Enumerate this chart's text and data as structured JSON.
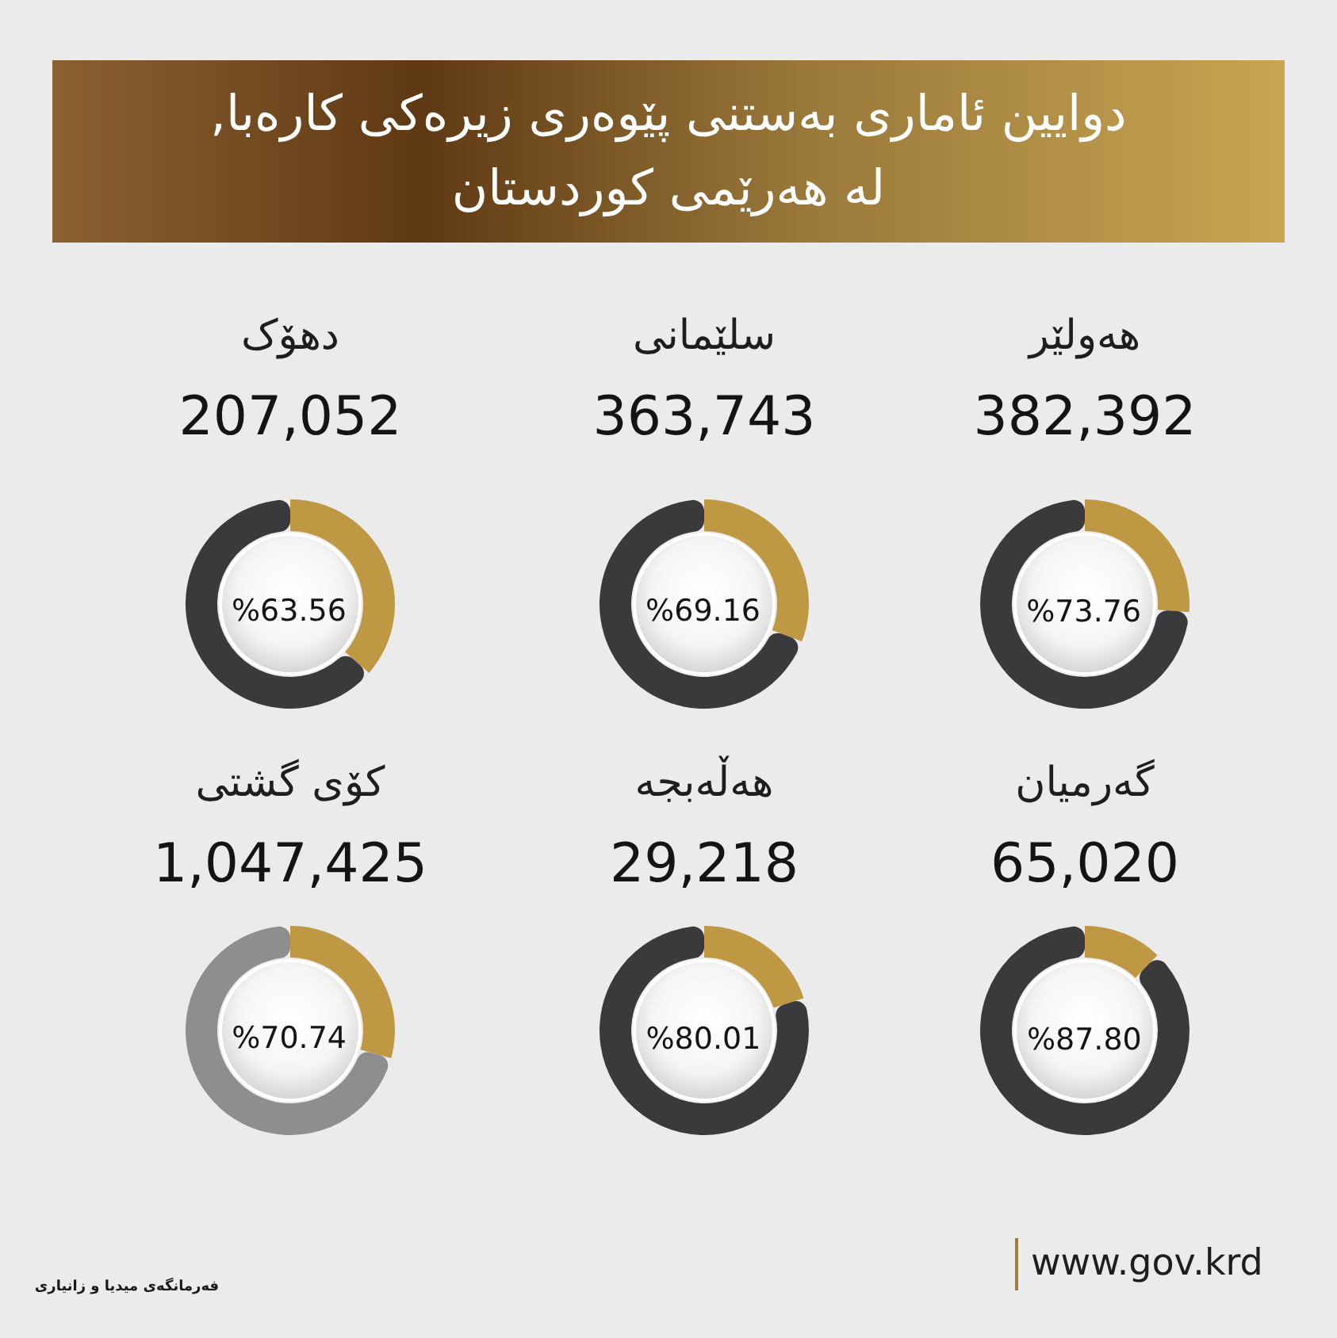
{
  "chart_data": [
    {
      "type": "other",
      "title": "دوایین ئاماری بەستنی پێوەری زیرەکی کارەبا, لە هەرێمی کوردستان"
    },
    {
      "type": "donut",
      "title": "هەولێر",
      "subtitle": "382,392",
      "categories": [
        null,
        null
      ],
      "values": [
        26.24,
        73.76
      ],
      "colors": [
        "#bf9844",
        "#3a3a3c"
      ],
      "value_labels": [
        null,
        "%73.76"
      ]
    },
    {
      "type": "donut",
      "title": "سلێمانی",
      "subtitle": "363,743",
      "categories": [
        null,
        null
      ],
      "values": [
        30.84,
        69.16
      ],
      "colors": [
        "#bf9844",
        "#3a3a3c"
      ],
      "value_labels": [
        null,
        "%69.16"
      ]
    },
    {
      "type": "donut",
      "title": "دهۆک",
      "subtitle": "207,052",
      "categories": [
        null,
        null
      ],
      "values": [
        36.44,
        63.56
      ],
      "colors": [
        "#bf9844",
        "#3a3a3c"
      ],
      "value_labels": [
        null,
        "%63.56"
      ]
    },
    {
      "type": "donut",
      "title": "گەرمیان",
      "subtitle": "65,020",
      "categories": [
        null,
        null
      ],
      "values": [
        12.2,
        87.8
      ],
      "colors": [
        "#bf9844",
        "#3a3a3c"
      ],
      "value_labels": [
        null,
        "%87.80"
      ]
    },
    {
      "type": "donut",
      "title": "هەڵەبجە",
      "subtitle": "29,218",
      "categories": [
        null,
        null
      ],
      "values": [
        19.99,
        80.01
      ],
      "colors": [
        "#bf9844",
        "#3a3a3c"
      ],
      "value_labels": [
        null,
        "%80.01"
      ]
    },
    {
      "type": "donut",
      "title": "کۆی گشتی",
      "subtitle": "1,047,425",
      "categories": [
        null,
        null
      ],
      "values": [
        29.26,
        70.74
      ],
      "colors": [
        "#bf9844",
        "#8e8e8e"
      ],
      "value_labels": [
        null,
        "%70.74"
      ]
    },
    {
      "type": "other",
      "annotations": [
        "فەرمانگەی میدیا و زانیاری",
        "www.gov.krd"
      ]
    }
  ]
}
